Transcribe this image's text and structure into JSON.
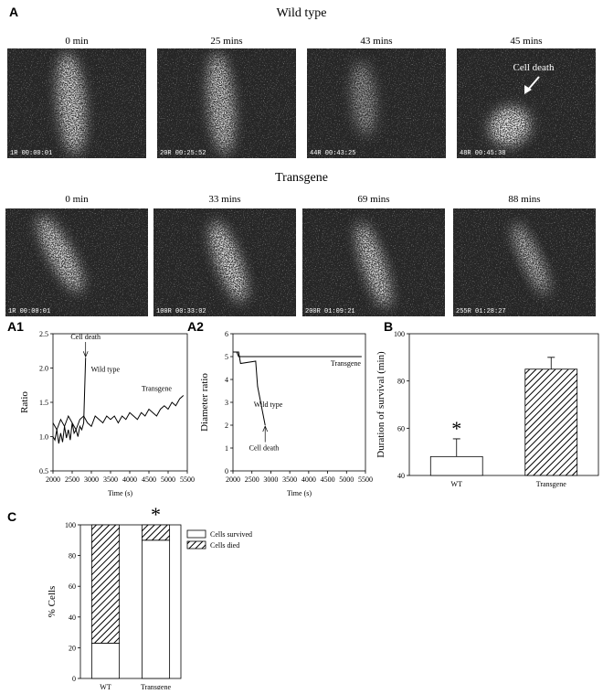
{
  "panel_a": {
    "label": "A",
    "groups": [
      {
        "title": "Wild type",
        "annotation": "Cell death",
        "frames": [
          {
            "time": "0 min",
            "stamp": "1R 00:00:01"
          },
          {
            "time": "25 mins",
            "stamp": "20R 00:25:52"
          },
          {
            "time": "43 mins",
            "stamp": "44R 00:43:25"
          },
          {
            "time": "45 mins",
            "stamp": "48R 00:45:38"
          }
        ]
      },
      {
        "title": "Transgene",
        "frames": [
          {
            "time": "0 min",
            "stamp": "1R 00:00:01"
          },
          {
            "time": "33 mins",
            "stamp": "100R 00:33:02"
          },
          {
            "time": "69 mins",
            "stamp": "200R 01:09:21"
          },
          {
            "time": "88 mins",
            "stamp": "255R 01:28:27"
          }
        ]
      }
    ]
  },
  "chart_data": [
    {
      "type": "line",
      "label": "A1",
      "xlabel": "Time (s)",
      "ylabel": "Ratio",
      "xlim": [
        2000,
        5500
      ],
      "xticks": [
        2000,
        2500,
        3000,
        3500,
        4000,
        4500,
        5000,
        5500
      ],
      "ylim": [
        0.5,
        2.5
      ],
      "yticks": [
        {
          "value": 0.5,
          "label": "0.5"
        },
        {
          "value": 1,
          "label": "1.0"
        },
        {
          "value": 1.5,
          "label": "1.5"
        },
        {
          "value": 2,
          "label": "2.0"
        },
        {
          "value": 2.5,
          "label": "2.5"
        }
      ],
      "annotations": [
        "Cell death",
        "Wild type",
        "Transgene"
      ],
      "series": [
        {
          "name": "Wild type",
          "color": "#000000",
          "x": [
            2000,
            2050,
            2100,
            2150,
            2200,
            2250,
            2300,
            2350,
            2400,
            2450,
            2500,
            2550,
            2600,
            2650,
            2700,
            2750,
            2800,
            2850
          ],
          "values": [
            1.0,
            0.95,
            1.1,
            0.9,
            1.05,
            0.92,
            1.15,
            0.98,
            1.1,
            0.95,
            1.2,
            1.05,
            1.1,
            1.0,
            1.15,
            1.1,
            1.2,
            2.15
          ]
        },
        {
          "name": "Transgene",
          "color": "#000000",
          "x": [
            2000,
            2100,
            2200,
            2300,
            2400,
            2500,
            2600,
            2700,
            2800,
            2900,
            3000,
            3100,
            3200,
            3300,
            3400,
            3500,
            3600,
            3700,
            3800,
            3900,
            4000,
            4100,
            4200,
            4300,
            4400,
            4500,
            4600,
            4700,
            4800,
            4900,
            5000,
            5100,
            5200,
            5300,
            5400
          ],
          "values": [
            1.2,
            1.1,
            1.25,
            1.15,
            1.3,
            1.2,
            1.1,
            1.25,
            1.3,
            1.2,
            1.15,
            1.3,
            1.25,
            1.2,
            1.3,
            1.25,
            1.3,
            1.2,
            1.3,
            1.25,
            1.35,
            1.3,
            1.25,
            1.35,
            1.3,
            1.4,
            1.35,
            1.3,
            1.4,
            1.45,
            1.4,
            1.5,
            1.45,
            1.55,
            1.6
          ]
        }
      ]
    },
    {
      "type": "line",
      "label": "A2",
      "xlabel": "Time (s)",
      "ylabel": "Diameter ratio",
      "xlim": [
        2000,
        5500
      ],
      "xticks": [
        2000,
        2500,
        3000,
        3500,
        4000,
        4500,
        5000,
        5500
      ],
      "ylim": [
        0,
        6
      ],
      "yticks": [
        0,
        1,
        2,
        3,
        4,
        5,
        6
      ],
      "annotations": [
        "Transgene",
        "Wild type",
        "Cell death"
      ],
      "series": [
        {
          "name": "Wild type",
          "color": "#000000",
          "x": [
            2000,
            2150,
            2200,
            2600,
            2650,
            2850
          ],
          "values": [
            5.2,
            5.2,
            4.7,
            4.8,
            3.7,
            2.0
          ]
        },
        {
          "name": "Transgene",
          "color": "#000000",
          "x": [
            2000,
            2100,
            2150,
            5400
          ],
          "values": [
            5.2,
            5.2,
            5.0,
            5.0
          ]
        }
      ]
    },
    {
      "type": "bar",
      "label": "B",
      "ylabel": "Duration of survival (min)",
      "ylim": [
        40,
        100
      ],
      "yticks": [
        40,
        60,
        80,
        100
      ],
      "categories": [
        "WT",
        "Transgene"
      ],
      "values": [
        48,
        85
      ],
      "errors": [
        7.5,
        5
      ],
      "fills": [
        "white",
        "hatch"
      ],
      "annotations": [
        "*"
      ]
    },
    {
      "type": "bar",
      "label": "C",
      "ylabel": "% Cells",
      "ylim": [
        0,
        100
      ],
      "yticks": [
        0,
        20,
        40,
        60,
        80,
        100
      ],
      "stacked": true,
      "categories": [
        "WT",
        "Transgene"
      ],
      "annotations": [
        "*"
      ],
      "series": [
        {
          "name": "Cells survived",
          "color": "white",
          "values": [
            23,
            90
          ]
        },
        {
          "name": "Cells died",
          "color": "hatch",
          "values": [
            77,
            10
          ]
        }
      ]
    }
  ]
}
